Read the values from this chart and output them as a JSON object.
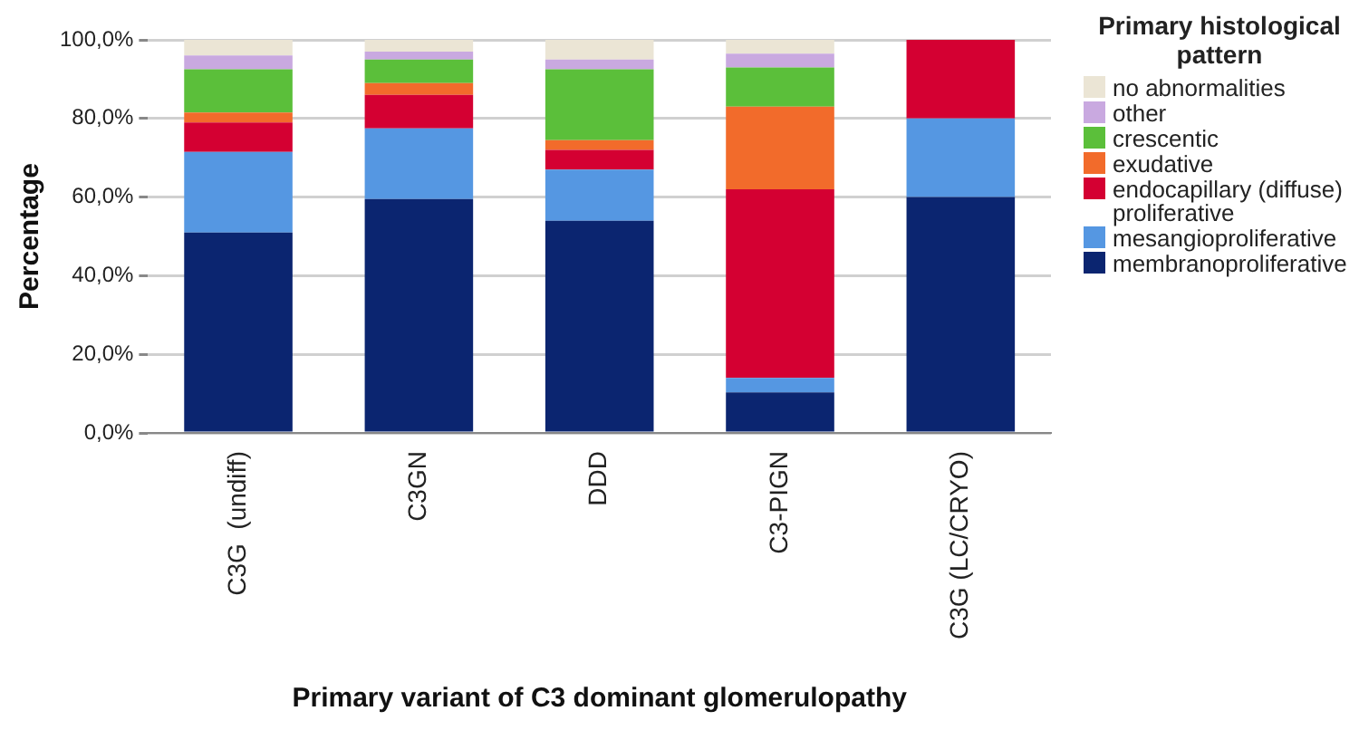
{
  "chart_data": {
    "type": "bar",
    "stacked": true,
    "xlabel": "Primary variant of C3 dominant glomerulopathy",
    "ylabel": "Percentage",
    "legend_title": "Primary histological pattern",
    "legend": "right",
    "grid": "y",
    "categories": [
      "C3G  (undiff)",
      "C3GN",
      "DDD",
      "C3-PIGN",
      "C3G (LC/CRYO)"
    ],
    "ylim": [
      0,
      100
    ],
    "yticks": [
      {
        "value": 0,
        "label": "0,0%"
      },
      {
        "value": 20,
        "label": "20,0%"
      },
      {
        "value": 40,
        "label": "40,0%"
      },
      {
        "value": 60,
        "label": "60,0%"
      },
      {
        "value": 80,
        "label": "80,0%"
      },
      {
        "value": 100,
        "label": "100,0%"
      }
    ],
    "series": [
      {
        "name": "membranoproliferative",
        "color": "#0b2570",
        "values": [
          51,
          59.5,
          54,
          10.3,
          60
        ]
      },
      {
        "name": "mesangioproliferative",
        "color": "#5597e2",
        "values": [
          20.5,
          18,
          13,
          3.7,
          20
        ]
      },
      {
        "name": "endocapillary (diffuse) proliferative",
        "color": "#d40032",
        "values": [
          7.5,
          8.5,
          5,
          48,
          20
        ]
      },
      {
        "name": "exudative",
        "color": "#f26b2b",
        "values": [
          2.5,
          3,
          2.5,
          21,
          0
        ]
      },
      {
        "name": "crescentic",
        "color": "#5bbf3a",
        "values": [
          11,
          6,
          18,
          10,
          0
        ]
      },
      {
        "name": "other",
        "color": "#c9a9e0",
        "values": [
          3.5,
          2,
          2.5,
          3.5,
          0
        ]
      },
      {
        "name": "no abnormalities",
        "color": "#ebe5d5",
        "values": [
          4,
          3,
          5,
          3.5,
          0
        ]
      }
    ]
  }
}
